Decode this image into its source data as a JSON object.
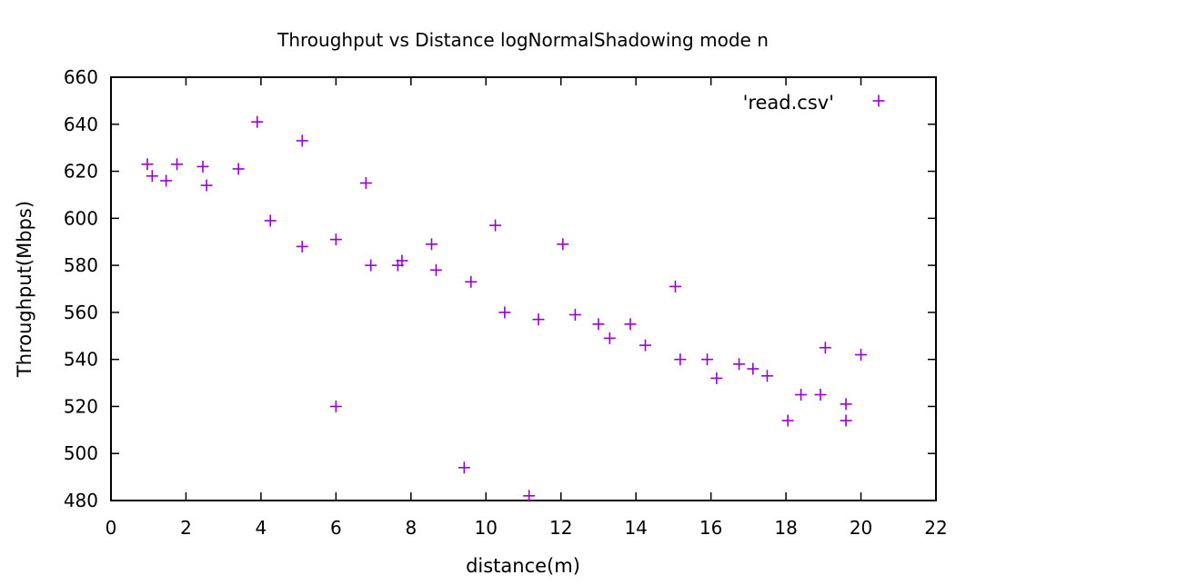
{
  "chart_data": {
    "type": "scatter",
    "title": "Throughput vs Distance logNormalShadowing mode n",
    "xlabel": "distance(m)",
    "ylabel": "Throughput(Mbps)",
    "xlim": [
      0,
      22
    ],
    "ylim": [
      480,
      660
    ],
    "xticks": [
      0,
      2,
      4,
      6,
      8,
      10,
      12,
      14,
      16,
      18,
      20,
      22
    ],
    "yticks": [
      480,
      500,
      520,
      540,
      560,
      580,
      600,
      620,
      640,
      660
    ],
    "grid": false,
    "legend_position": "top-right",
    "marker": "+",
    "color": "#9400d3",
    "series": [
      {
        "name": "'read.csv'",
        "points": [
          [
            0.97,
            623
          ],
          [
            1.1,
            618
          ],
          [
            1.47,
            616
          ],
          [
            1.76,
            623
          ],
          [
            2.45,
            622
          ],
          [
            2.55,
            614
          ],
          [
            3.4,
            621
          ],
          [
            3.9,
            641
          ],
          [
            4.25,
            599
          ],
          [
            5.1,
            633
          ],
          [
            5.1,
            588
          ],
          [
            6.0,
            591
          ],
          [
            6.0,
            520
          ],
          [
            6.8,
            615
          ],
          [
            6.93,
            580
          ],
          [
            7.65,
            580
          ],
          [
            7.76,
            582
          ],
          [
            8.55,
            589
          ],
          [
            8.67,
            578
          ],
          [
            9.42,
            494
          ],
          [
            9.6,
            573
          ],
          [
            10.25,
            597
          ],
          [
            10.5,
            560
          ],
          [
            11.15,
            482
          ],
          [
            11.4,
            557
          ],
          [
            12.05,
            589
          ],
          [
            12.38,
            559
          ],
          [
            13.0,
            555
          ],
          [
            13.3,
            549
          ],
          [
            13.85,
            555
          ],
          [
            14.25,
            546
          ],
          [
            15.05,
            571
          ],
          [
            15.18,
            540
          ],
          [
            15.9,
            540
          ],
          [
            16.15,
            532
          ],
          [
            16.75,
            538
          ],
          [
            17.12,
            536
          ],
          [
            17.5,
            533
          ],
          [
            18.05,
            514
          ],
          [
            18.4,
            525
          ],
          [
            18.92,
            525
          ],
          [
            19.05,
            545
          ],
          [
            19.6,
            521
          ],
          [
            19.6,
            514
          ],
          [
            20.0,
            542
          ]
        ]
      }
    ]
  }
}
